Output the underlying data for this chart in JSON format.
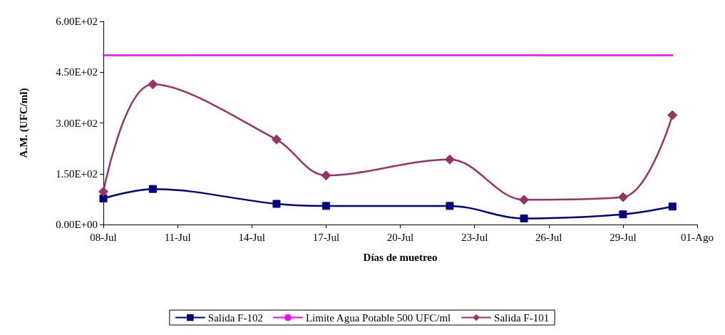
{
  "chart_data": {
    "type": "line",
    "xlabel": "Días de muetreo",
    "ylabel": "A.M. (UFC/ml)",
    "xlim": [
      "--07-08",
      "--08-01"
    ],
    "xticks": [
      {
        "value": "--07-08",
        "label": "08-Jul"
      },
      {
        "value": "--07-11",
        "label": "11-Jul"
      },
      {
        "value": "--07-14",
        "label": "14-Jul"
      },
      {
        "value": "--07-17",
        "label": "17-Jul"
      },
      {
        "value": "--07-20",
        "label": "20-Jul"
      },
      {
        "value": "--07-23",
        "label": "23-Jul"
      },
      {
        "value": "--07-26",
        "label": "26-Jul"
      },
      {
        "value": "--07-29",
        "label": "29-Jul"
      },
      {
        "value": "--08-01",
        "label": "01-Ago"
      }
    ],
    "ylim": [
      0,
      600
    ],
    "yticks": [
      {
        "value": 0,
        "label": "0.00E+00"
      },
      {
        "value": 150,
        "label": "1.50E+02"
      },
      {
        "value": 300,
        "label": "3.00E+02"
      },
      {
        "value": 450,
        "label": "4.50E+02"
      },
      {
        "value": 600,
        "label": "6.00E+02"
      }
    ],
    "grid": false,
    "legend": "bottom",
    "series": [
      {
        "name": "Salida F-102",
        "color": "#000080",
        "marker": "square",
        "x": [
          "--07-08",
          "--07-10",
          "--07-15",
          "--07-17",
          "--07-22",
          "--07-25",
          "--07-29",
          "--07-31"
        ],
        "values": [
          77,
          105,
          61,
          55,
          55,
          18,
          30,
          53
        ]
      },
      {
        "name": "Limite Agua Potable 500 UFC/ml",
        "color": "#ff00ff",
        "marker": "none",
        "x": [
          "--07-08",
          "--07-31"
        ],
        "values": [
          500,
          500
        ]
      },
      {
        "name": "Salida F-101",
        "color": "#993366",
        "marker": "diamond",
        "x": [
          "--07-08",
          "--07-10",
          "--07-15",
          "--07-17",
          "--07-22",
          "--07-25",
          "--07-29",
          "--07-31"
        ],
        "values": [
          97,
          414,
          251,
          145,
          192,
          73,
          81,
          323
        ]
      }
    ]
  }
}
